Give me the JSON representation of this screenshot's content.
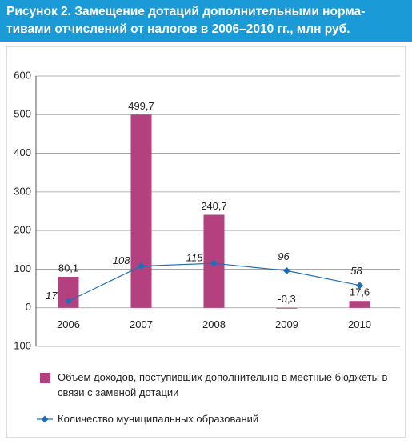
{
  "chart_data": {
    "type": "bar",
    "title": [
      "Рисунок 2. Замещение дотаций дополнительными норма-",
      "тивами отчислений от налогов в 2006–2010 гг., млн руб."
    ],
    "categories": [
      "2006",
      "2007",
      "2008",
      "2009",
      "2010"
    ],
    "series": [
      {
        "name": "Объем доходов, поступивших дополнительно в местные бюджеты в связи с заменой дотации",
        "type": "bar",
        "color": "#b5407f",
        "values": [
          80.1,
          499.7,
          240.7,
          -0.3,
          17.6
        ],
        "value_labels": [
          "80,1",
          "499,7",
          "240,7",
          "-0,3",
          "17,6"
        ]
      },
      {
        "name": "Количество муниципальных образований",
        "type": "line",
        "color": "#1f6fb8",
        "values": [
          17,
          108,
          115,
          96,
          58
        ]
      }
    ],
    "ylim": [
      -100,
      600
    ],
    "yticks": [
      {
        "value": -100,
        "label": "100"
      },
      0,
      100,
      200,
      300,
      400,
      500,
      600
    ],
    "grid": true
  }
}
